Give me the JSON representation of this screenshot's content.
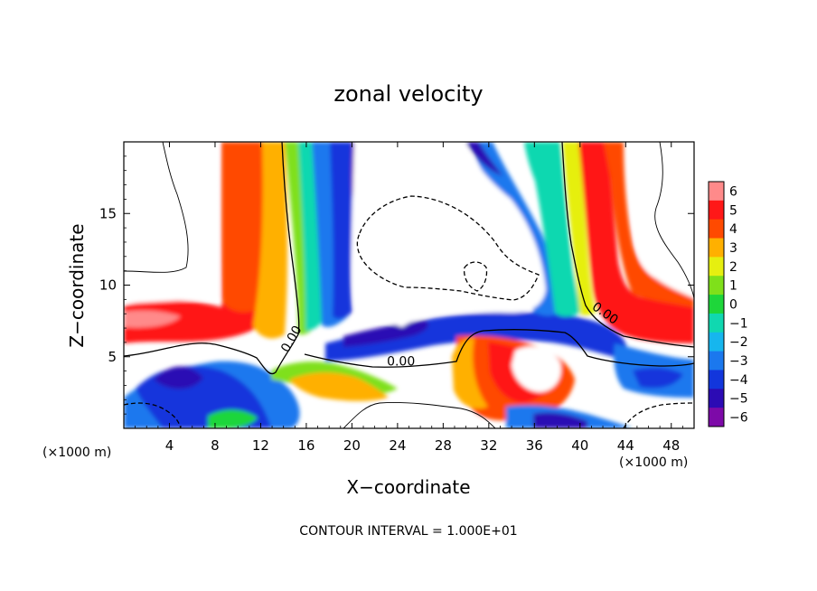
{
  "chart_data": {
    "type": "heatmap",
    "title": "zonal velocity",
    "xlabel": "X−coordinate",
    "ylabel": "Z−coordinate",
    "x_unit_label": "(×1000 m)",
    "x_unit_label_right": "(×1000 m)",
    "xlim": [
      0,
      50
    ],
    "ylim": [
      0,
      20
    ],
    "x_ticks": [
      4,
      8,
      12,
      16,
      20,
      24,
      28,
      32,
      36,
      40,
      44,
      48
    ],
    "y_ticks": [
      5,
      10,
      15
    ],
    "colorbar": {
      "min": -6,
      "max": 6,
      "ticks": [
        6,
        5,
        4,
        3,
        2,
        1,
        0,
        -1,
        -2,
        -3,
        -4,
        -5,
        -6
      ],
      "tick_labels": [
        "6",
        "5",
        "4",
        "3",
        "2",
        "1",
        "0",
        "−1",
        "−2",
        "−3",
        "−4",
        "−5",
        "−6"
      ]
    },
    "contour_labels": [
      {
        "text": "0.00",
        "x": 15.0,
        "z": 6.1
      },
      {
        "text": "0.00",
        "x": 24.3,
        "z": 4.4
      },
      {
        "text": "0.00",
        "x": 42.0,
        "z": 7.8
      }
    ],
    "footer": "CONTOUR INTERVAL = 1.000E+01"
  }
}
